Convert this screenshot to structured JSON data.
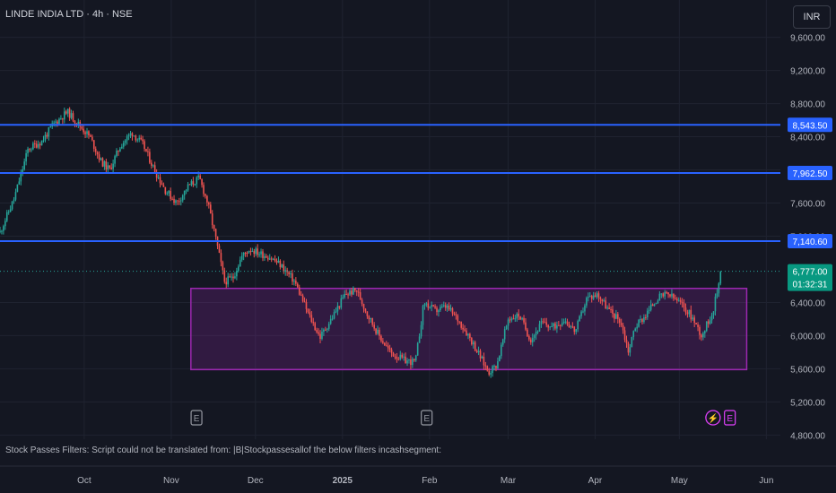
{
  "header": {
    "symbol_line": "LINDE INDIA LTD · 4h · NSE"
  },
  "currency_button": {
    "label": "INR"
  },
  "status_line": {
    "text": "Stock Passes Filters: Script could not be translated from: |B|Stockpassesallof the below filters incashsegment:"
  },
  "colors": {
    "background": "#141722",
    "grid": "#1f2330",
    "up": "#26a69a",
    "down": "#ef5350",
    "level_line": "#2962ff",
    "range_box": "#9c27b0",
    "axis_text": "#b2b5be"
  },
  "chart_data": {
    "type": "candlestick",
    "y_axis_ticks": [
      "9,600.00",
      "9,200.00",
      "8,800.00",
      "8,400.00",
      "8,000.00",
      "7,600.00",
      "7,200.00",
      "6,400.00",
      "6,000.00",
      "5,600.00",
      "5,200.00",
      "4,800.00"
    ],
    "y_tick_values": [
      9600,
      9200,
      8800,
      8400,
      8000,
      7600,
      7200,
      6400,
      6000,
      5600,
      5200,
      4800
    ],
    "y_range": [
      4750,
      10050
    ],
    "x_axis_labels": [
      "Oct",
      "Nov",
      "Dec",
      "2025",
      "Feb",
      "Mar",
      "Apr",
      "May",
      "Jun"
    ],
    "x_label_dates": [
      "2024-10-01",
      "2024-11-01",
      "2024-12-01",
      "2025-01-01",
      "2025-02-01",
      "2025-03-01",
      "2025-04-01",
      "2025-05-01",
      "2025-06-01"
    ],
    "x_range": [
      "2024-09-01",
      "2025-06-06"
    ],
    "horizontal_levels": [
      {
        "value": 8543.5,
        "label": "8,543.50"
      },
      {
        "value": 7962.5,
        "label": "7,962.50"
      },
      {
        "value": 7140.6,
        "label": "7,140.60"
      }
    ],
    "last_price": {
      "value": 6777.0,
      "label": "6,777.00",
      "countdown": "01:32:31"
    },
    "range_box": {
      "start": "2024-11-08",
      "end": "2025-05-25",
      "top": 6570,
      "bottom": 5590
    },
    "event_markers": [
      {
        "date": "2024-11-10",
        "label": "E",
        "kind": "earnings"
      },
      {
        "date": "2025-01-31",
        "label": "E",
        "kind": "earnings"
      },
      {
        "date": "2025-05-13",
        "label": "⚡",
        "kind": "dividend"
      },
      {
        "date": "2025-05-19",
        "label": "E",
        "kind": "earnings-upcoming"
      }
    ],
    "price_path": [
      [
        "2024-09-01",
        7250
      ],
      [
        "2024-09-06",
        7650
      ],
      [
        "2024-09-11",
        8250
      ],
      [
        "2024-09-16",
        8350
      ],
      [
        "2024-09-20",
        8550
      ],
      [
        "2024-09-25",
        8700
      ],
      [
        "2024-09-29",
        8550
      ],
      [
        "2024-10-03",
        8400
      ],
      [
        "2024-10-07",
        8100
      ],
      [
        "2024-10-10",
        8000
      ],
      [
        "2024-10-14",
        8300
      ],
      [
        "2024-10-18",
        8450
      ],
      [
        "2024-10-22",
        8300
      ],
      [
        "2024-10-26",
        8000
      ],
      [
        "2024-10-30",
        7750
      ],
      [
        "2024-11-03",
        7600
      ],
      [
        "2024-11-07",
        7800
      ],
      [
        "2024-11-11",
        7900
      ],
      [
        "2024-11-14",
        7600
      ],
      [
        "2024-11-17",
        7150
      ],
      [
        "2024-11-20",
        6650
      ],
      [
        "2024-11-23",
        6700
      ],
      [
        "2024-11-26",
        6950
      ],
      [
        "2024-11-29",
        7050
      ],
      [
        "2024-12-02",
        7000
      ],
      [
        "2024-12-06",
        6950
      ],
      [
        "2024-12-10",
        6850
      ],
      [
        "2024-12-15",
        6650
      ],
      [
        "2024-12-20",
        6250
      ],
      [
        "2024-12-24",
        5980
      ],
      [
        "2024-12-28",
        6200
      ],
      [
        "2025-01-02",
        6500
      ],
      [
        "2025-01-06",
        6550
      ],
      [
        "2025-01-10",
        6250
      ],
      [
        "2025-01-14",
        6000
      ],
      [
        "2025-01-18",
        5800
      ],
      [
        "2025-01-23",
        5700
      ],
      [
        "2025-01-27",
        5680
      ],
      [
        "2025-01-30",
        6400
      ],
      [
        "2025-02-03",
        6300
      ],
      [
        "2025-02-07",
        6350
      ],
      [
        "2025-02-11",
        6200
      ],
      [
        "2025-02-15",
        6000
      ],
      [
        "2025-02-19",
        5750
      ],
      [
        "2025-02-22",
        5560
      ],
      [
        "2025-02-25",
        5650
      ],
      [
        "2025-03-01",
        6200
      ],
      [
        "2025-03-05",
        6250
      ],
      [
        "2025-03-09",
        5950
      ],
      [
        "2025-03-13",
        6150
      ],
      [
        "2025-03-17",
        6100
      ],
      [
        "2025-03-21",
        6200
      ],
      [
        "2025-03-25",
        6050
      ],
      [
        "2025-03-29",
        6450
      ],
      [
        "2025-04-02",
        6500
      ],
      [
        "2025-04-06",
        6300
      ],
      [
        "2025-04-10",
        6180
      ],
      [
        "2025-04-13",
        5800
      ],
      [
        "2025-04-15",
        6100
      ],
      [
        "2025-04-19",
        6250
      ],
      [
        "2025-04-23",
        6450
      ],
      [
        "2025-04-27",
        6500
      ],
      [
        "2025-05-01",
        6400
      ],
      [
        "2025-05-05",
        6250
      ],
      [
        "2025-05-09",
        6000
      ],
      [
        "2025-05-13",
        6300
      ],
      [
        "2025-05-16",
        6777
      ]
    ]
  }
}
